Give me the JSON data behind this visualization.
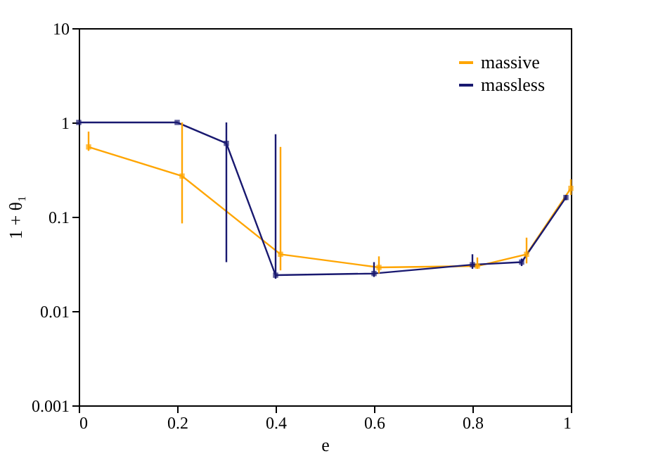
{
  "chart_data": {
    "type": "line",
    "xlabel": "e",
    "ylabel": "1 + θ₁",
    "log": "y",
    "xlim": [
      0,
      1
    ],
    "xticks": [
      0,
      0.2,
      0.4,
      0.6,
      0.8,
      1
    ],
    "ylim": [
      0.001,
      10
    ],
    "yticks": [
      0.001,
      0.01,
      0.1,
      1,
      10
    ],
    "grid": false,
    "legend": "top right",
    "marker": "square",
    "line_style": "solid",
    "series": [
      {
        "name": "massive",
        "color": "#ffa500",
        "x": [
          0.02,
          0.21,
          0.41,
          0.61,
          0.81,
          0.91,
          1.0
        ],
        "values": [
          0.55,
          0.27,
          0.04,
          0.029,
          0.03,
          0.04,
          0.2
        ],
        "errors": [
          [
            0.5,
            0.8
          ],
          [
            0.085,
            1.0
          ],
          [
            0.027,
            0.55
          ],
          [
            0.025,
            0.038
          ],
          [
            0.028,
            0.037
          ],
          [
            0.032,
            0.06
          ],
          [
            0.17,
            0.25
          ]
        ]
      },
      {
        "name": "massless",
        "color": "#191970",
        "x": [
          0,
          0.2,
          0.3,
          0.4,
          0.6,
          0.8,
          0.9,
          0.99
        ],
        "values": [
          1.0,
          1.0,
          0.6,
          0.024,
          0.025,
          0.031,
          0.033,
          0.16
        ],
        "errors": [
          null,
          null,
          [
            0.033,
            1.0
          ],
          [
            0.022,
            0.75
          ],
          [
            0.023,
            0.033
          ],
          [
            0.028,
            0.04
          ],
          [
            0.03,
            0.036
          ],
          [
            0.15,
            0.17
          ]
        ]
      }
    ]
  }
}
